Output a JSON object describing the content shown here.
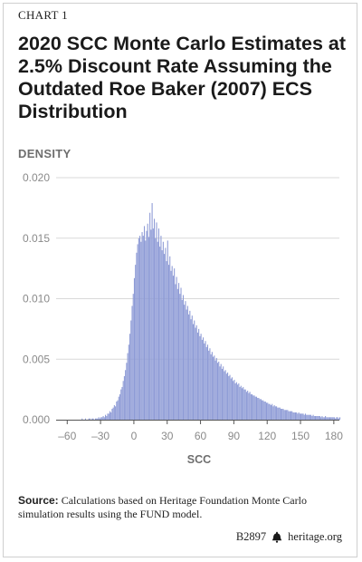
{
  "header": {
    "chart_label": "CHART 1",
    "title": "2020 SCC Monte Carlo Estimates at 2.5% Discount Rate Assuming the Outdated Roe Baker (2007) ECS Distribution"
  },
  "chart_data": {
    "type": "bar",
    "title": "2020 SCC Monte Carlo Estimates at 2.5% Discount Rate Assuming the Outdated Roe Baker (2007) ECS Distribution",
    "xlabel": "SCC",
    "ylabel": "DENSITY",
    "xlim": [
      -70,
      185
    ],
    "ylim": [
      0,
      0.02
    ],
    "x_ticks": [
      -60,
      -30,
      0,
      30,
      60,
      90,
      120,
      150,
      180
    ],
    "x_tick_labels": [
      "–60",
      "–30",
      "0",
      "30",
      "60",
      "90",
      "120",
      "150",
      "180"
    ],
    "y_ticks": [
      0,
      0.005,
      0.01,
      0.015,
      0.02
    ],
    "y_tick_labels": [
      "0.000",
      "0.005",
      "0.010",
      "0.015",
      "0.020"
    ],
    "grid": "horizontal",
    "bar_color": "#8e9bd6",
    "bin_width": 1,
    "bin_start": -50,
    "density": [
      0.0,
      0.0,
      0.0,
      0.0001,
      0.0,
      0.0,
      0.0001,
      0.0,
      0.0,
      0.0001,
      0.0001,
      0.0,
      0.0001,
      0.0001,
      0.0,
      0.0001,
      0.0001,
      0.0001,
      0.0002,
      0.0001,
      0.0002,
      0.0002,
      0.0003,
      0.0002,
      0.0004,
      0.0003,
      0.0005,
      0.0005,
      0.0007,
      0.0006,
      0.0009,
      0.001,
      0.0012,
      0.0011,
      0.0015,
      0.0016,
      0.0019,
      0.0021,
      0.0025,
      0.0027,
      0.0032,
      0.0036,
      0.0041,
      0.0047,
      0.0055,
      0.0062,
      0.0071,
      0.0082,
      0.0094,
      0.0104,
      0.0117,
      0.0128,
      0.0138,
      0.0145,
      0.015,
      0.0152,
      0.0147,
      0.0155,
      0.0152,
      0.016,
      0.0148,
      0.0156,
      0.0162,
      0.0151,
      0.0171,
      0.0157,
      0.0179,
      0.0158,
      0.0166,
      0.015,
      0.0163,
      0.0147,
      0.0158,
      0.0143,
      0.0152,
      0.014,
      0.0147,
      0.0137,
      0.0142,
      0.0131,
      0.0148,
      0.0128,
      0.0135,
      0.0123,
      0.0127,
      0.0119,
      0.0125,
      0.0112,
      0.0118,
      0.0108,
      0.0113,
      0.0104,
      0.0109,
      0.0099,
      0.0103,
      0.0095,
      0.0098,
      0.0091,
      0.0094,
      0.0087,
      0.009,
      0.0083,
      0.0086,
      0.0079,
      0.0082,
      0.0076,
      0.0078,
      0.0072,
      0.0075,
      0.0069,
      0.0071,
      0.0066,
      0.0068,
      0.0063,
      0.0065,
      0.006,
      0.0062,
      0.0057,
      0.0059,
      0.0054,
      0.0056,
      0.0052,
      0.0053,
      0.0049,
      0.0051,
      0.0047,
      0.0048,
      0.0044,
      0.0046,
      0.0042,
      0.0044,
      0.004,
      0.0041,
      0.0038,
      0.0039,
      0.0036,
      0.0037,
      0.0034,
      0.0035,
      0.0032,
      0.0033,
      0.003,
      0.0031,
      0.0029,
      0.003,
      0.0027,
      0.0028,
      0.0026,
      0.0027,
      0.0025,
      0.0025,
      0.0023,
      0.0024,
      0.0022,
      0.0023,
      0.0021,
      0.0021,
      0.002,
      0.002,
      0.0019,
      0.0019,
      0.0018,
      0.0018,
      0.0017,
      0.0017,
      0.0016,
      0.0016,
      0.0015,
      0.0015,
      0.0014,
      0.0014,
      0.0013,
      0.0013,
      0.0012,
      0.0013,
      0.0011,
      0.0012,
      0.0011,
      0.0011,
      0.001,
      0.001,
      0.001,
      0.0009,
      0.0009,
      0.0009,
      0.0008,
      0.0008,
      0.0008,
      0.0008,
      0.0007,
      0.0007,
      0.0007,
      0.0007,
      0.0006,
      0.0006,
      0.0006,
      0.0006,
      0.0005,
      0.0006,
      0.0005,
      0.0005,
      0.0005,
      0.0005,
      0.0004,
      0.0005,
      0.0004,
      0.0004,
      0.0004,
      0.0004,
      0.0004,
      0.0003,
      0.0004,
      0.0003,
      0.0003,
      0.0003,
      0.0003,
      0.0003,
      0.0003,
      0.0002,
      0.0003,
      0.0002,
      0.0002,
      0.0003,
      0.0002,
      0.0002,
      0.0002,
      0.0002,
      0.0002,
      0.0002,
      0.0002,
      0.0002,
      0.0001,
      0.0002,
      0.0002,
      0.0001,
      0.0002
    ]
  },
  "source": {
    "label": "Source:",
    "text": " Calculations based on Heritage Foundation Monte Carlo simulation results using the FUND model."
  },
  "footer": {
    "code": "B2897",
    "site": "heritage.org"
  }
}
